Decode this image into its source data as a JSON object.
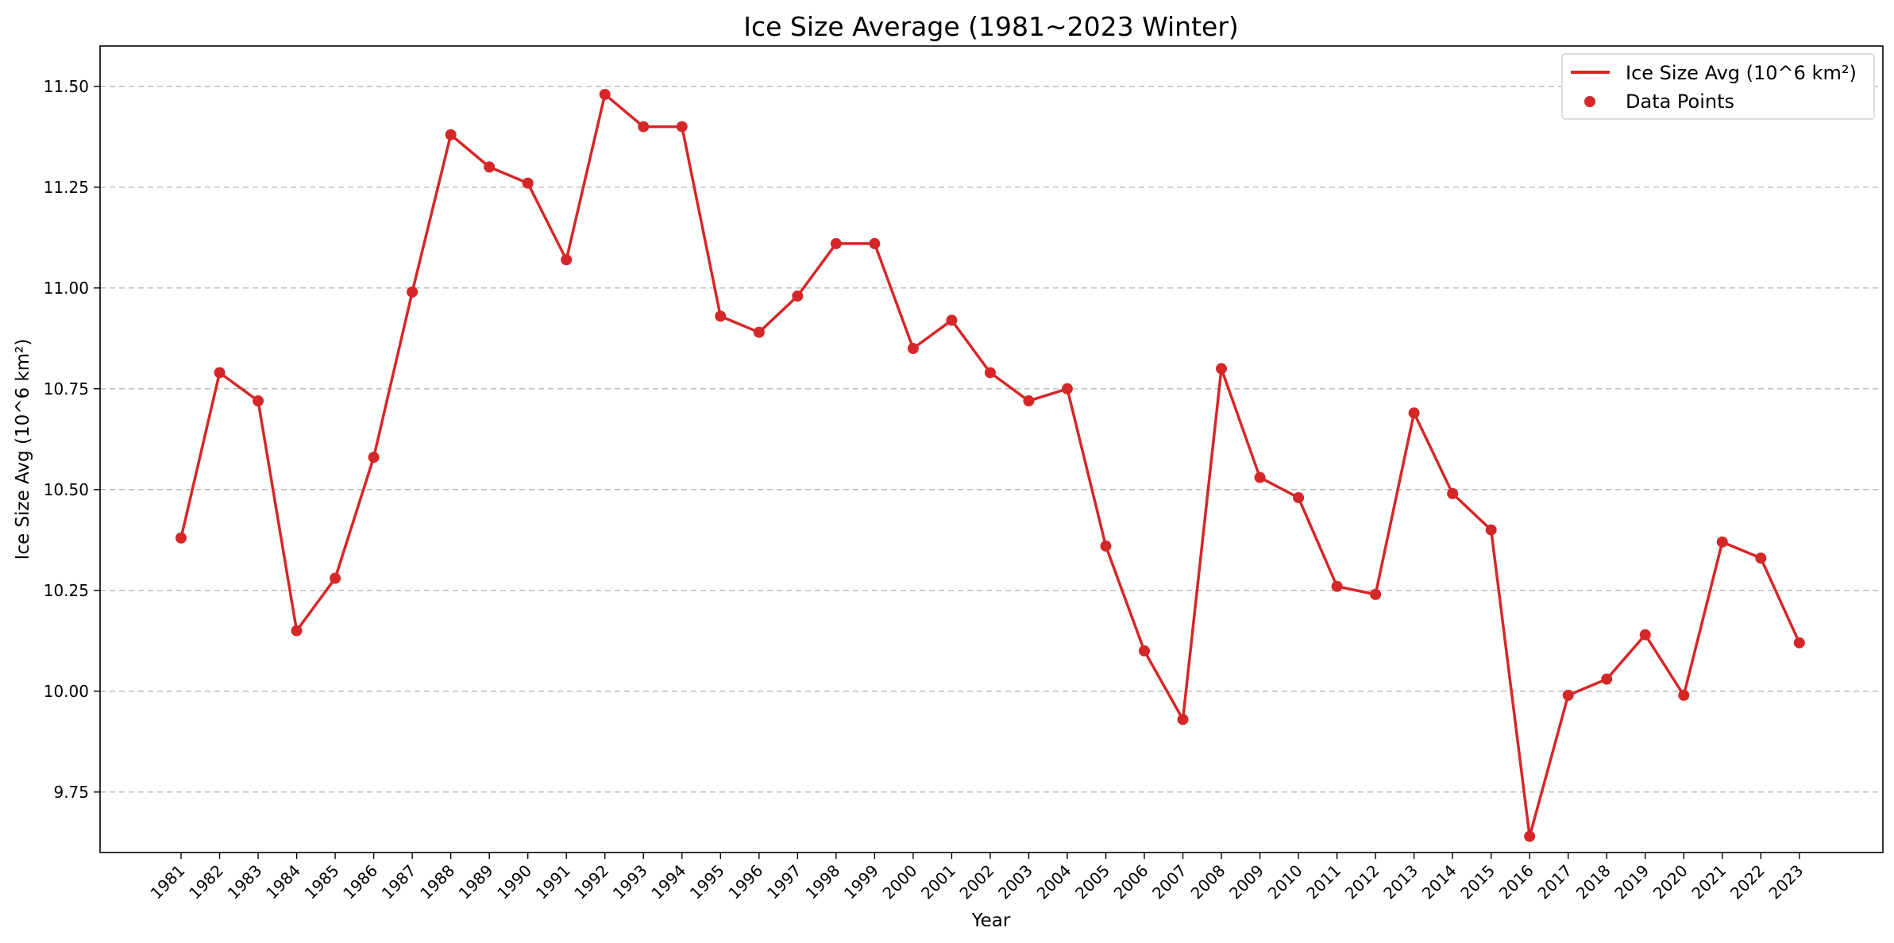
{
  "chart_data": {
    "type": "line",
    "title": "Ice Size Average (1981~2023 Winter)",
    "xlabel": "Year",
    "ylabel": "Ice Size Avg (10^6 km²)",
    "categories": [
      "1981",
      "1982",
      "1983",
      "1984",
      "1985",
      "1986",
      "1987",
      "1988",
      "1989",
      "1990",
      "1991",
      "1992",
      "1993",
      "1994",
      "1995",
      "1996",
      "1997",
      "1998",
      "1999",
      "2000",
      "2001",
      "2002",
      "2003",
      "2004",
      "2005",
      "2006",
      "2007",
      "2008",
      "2009",
      "2010",
      "2011",
      "2012",
      "2013",
      "2014",
      "2015",
      "2016",
      "2017",
      "2018",
      "2019",
      "2020",
      "2021",
      "2022",
      "2023"
    ],
    "series": [
      {
        "name": "Ice Size Avg (10^6 km²)",
        "color": "#d62728",
        "values": [
          10.38,
          10.79,
          10.72,
          10.15,
          10.28,
          10.58,
          10.99,
          11.38,
          11.3,
          11.26,
          11.07,
          11.48,
          11.4,
          11.4,
          10.93,
          10.89,
          10.98,
          11.11,
          11.11,
          10.85,
          10.92,
          10.79,
          10.72,
          10.75,
          10.36,
          10.1,
          9.93,
          10.8,
          10.53,
          10.48,
          10.26,
          10.24,
          10.69,
          10.49,
          10.4,
          9.64,
          9.99,
          10.03,
          10.14,
          9.99,
          10.37,
          10.33,
          10.12
        ]
      }
    ],
    "legend": {
      "position": "top-right",
      "entries": [
        {
          "label": "Ice Size Avg (10^6 km²)",
          "marker": "line",
          "color": "#d62728"
        },
        {
          "label": "Data Points",
          "marker": "point",
          "color": "#d62728"
        }
      ]
    },
    "ylim": [
      9.6,
      11.6
    ],
    "yticks": [
      9.75,
      10.0,
      10.25,
      10.5,
      10.75,
      11.0,
      11.25,
      11.5
    ],
    "ytick_labels": [
      "9.75",
      "10.00",
      "10.25",
      "10.50",
      "10.75",
      "11.00",
      "11.25",
      "11.50"
    ],
    "grid": "horizontal dashed",
    "xtick_rotation": 45
  }
}
